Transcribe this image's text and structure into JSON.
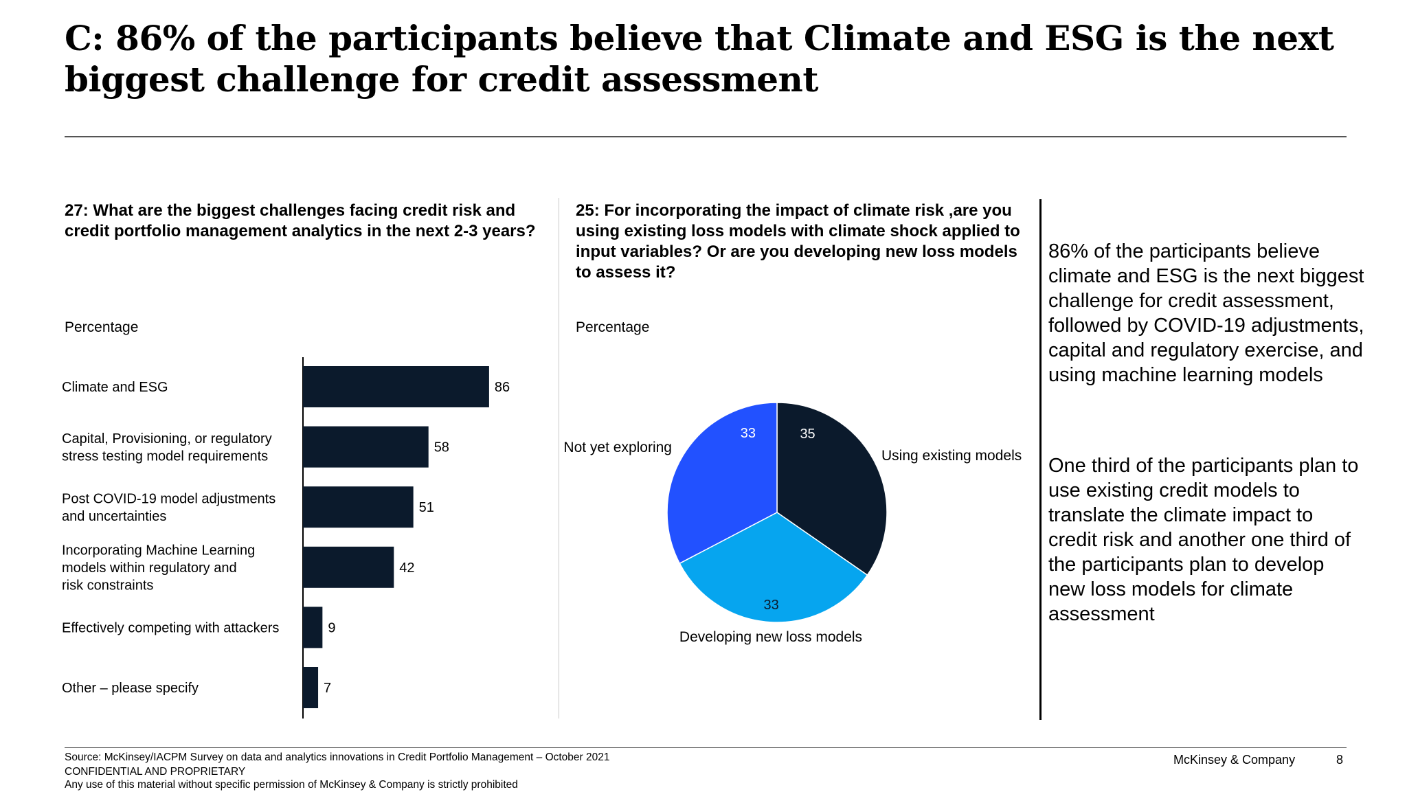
{
  "title": "C: 86% of the participants believe that Climate and ESG is the next biggest challenge for credit assessment",
  "left_panel": {
    "question": "27: What are the biggest challenges facing credit risk and credit portfolio management analytics in the next 2-3 years?",
    "unit_label": "Percentage"
  },
  "middle_panel": {
    "question": "25: For incorporating the impact of climate risk ,are you using existing loss models with climate shock applied to input variables? Or are you developing new loss models to assess it?",
    "unit_label": "Percentage"
  },
  "chart_data": [
    {
      "type": "bar",
      "orientation": "horizontal",
      "categories": [
        [
          "Climate and ESG"
        ],
        [
          "Capital, Provisioning, or regulatory",
          "stress testing model requirements"
        ],
        [
          "Post COVID-19 model adjustments",
          "and uncertainties"
        ],
        [
          "Incorporating Machine Learning",
          "models within regulatory and",
          "risk constraints"
        ],
        [
          "Effectively competing with attackers"
        ],
        [
          "Other – please specify"
        ]
      ],
      "values": [
        86,
        58,
        51,
        42,
        9,
        7
      ],
      "color": "#0b1a2c",
      "xlim": [
        0,
        100
      ],
      "grid": false,
      "legend": "none"
    },
    {
      "type": "pie",
      "slices": [
        {
          "label": "Using existing models",
          "value": 35,
          "color": "#0b1a2c"
        },
        {
          "label": "Developing new loss models",
          "value": 33,
          "color": "#06a5ef"
        },
        {
          "label": "Not yet exploring",
          "value": 33,
          "color": "#2251ff"
        }
      ],
      "value_label_colors": [
        "#ffffff",
        "#0b1a2c",
        "#ffffff"
      ]
    }
  ],
  "callouts": [
    "86% of the participants believe climate and ESG is the next biggest challenge for credit assessment, followed by COVID-19 adjustments, capital and regulatory exercise, and using machine learning models",
    "One third of the participants plan to use existing credit models to translate the climate impact to credit risk and another one third of the participants plan to develop new loss models for climate assessment"
  ],
  "footer": {
    "source": "Source: McKinsey/IACPM Survey on data and analytics innovations in Credit Portfolio Management – October 2021",
    "confidential": "CONFIDENTIAL AND PROPRIETARY",
    "notice": "Any use of this material without specific permission of McKinsey & Company is strictly prohibited",
    "brand": "McKinsey & Company",
    "page_number": "8"
  }
}
